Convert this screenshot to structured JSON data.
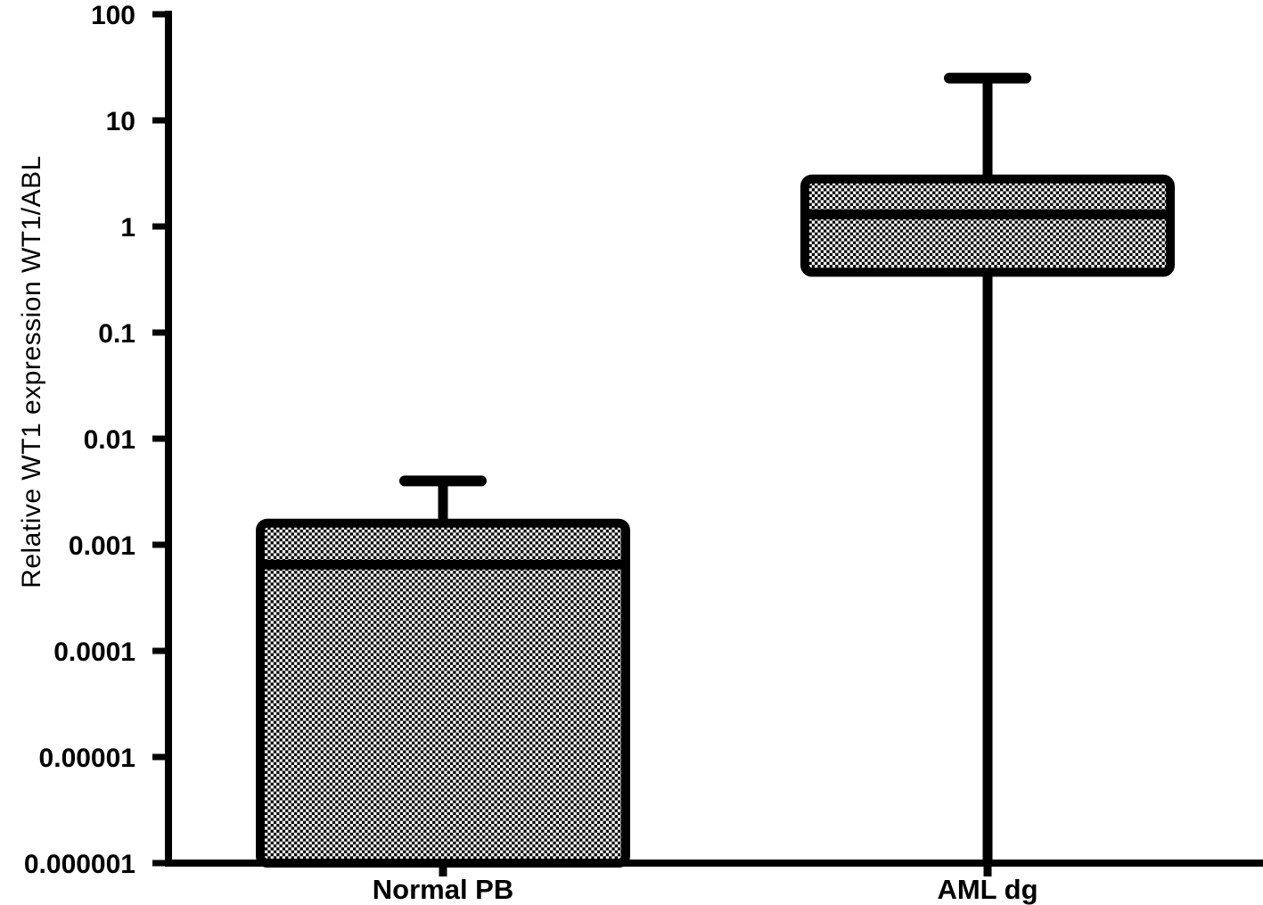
{
  "chart_data": {
    "type": "box",
    "title": "",
    "xlabel": "",
    "ylabel": "Relative WT1 expression WT1/ABL",
    "yscale": "log",
    "ylim": [
      1e-06,
      100
    ],
    "grid": false,
    "legend": "none",
    "ytick_labels": [
      "100",
      "10",
      "1",
      "0.1",
      "0.01",
      "0.001",
      "0.0001",
      "0.00001",
      "0.000001"
    ],
    "ytick_values": [
      100,
      10,
      1,
      0.1,
      0.01,
      0.001,
      0.0001,
      1e-05,
      1e-06
    ],
    "categories": [
      "Normal PB",
      "AML dg"
    ],
    "series": [
      {
        "name": "Normal PB",
        "whisker_high": 0.004,
        "q3": 0.0016,
        "median": 0.00065,
        "q1": 1e-06,
        "whisker_low": null
      },
      {
        "name": "AML dg",
        "whisker_high": 25,
        "q3": 2.8,
        "median": 1.3,
        "q1": 0.37,
        "whisker_low": 1e-06
      }
    ],
    "style": {
      "stroke_color": "#000000",
      "background": "#ffffff",
      "fill_pattern": "checkerboard",
      "pattern_colors": [
        "#000000",
        "#ffffff"
      ]
    }
  }
}
